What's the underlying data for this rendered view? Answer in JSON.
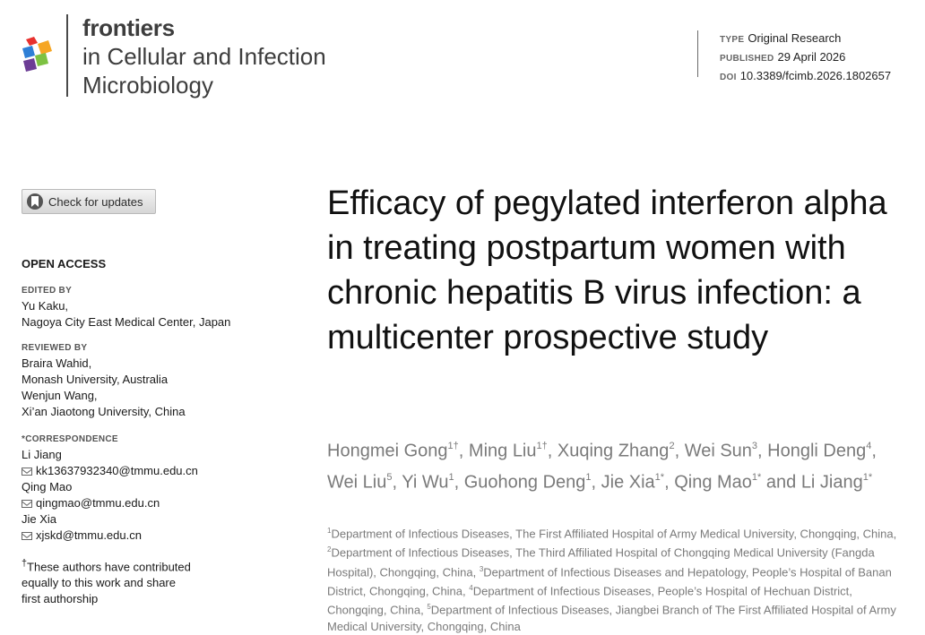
{
  "header": {
    "brand": "frontiers",
    "journal": "in Cellular and Infection Microbiology",
    "type_label": "TYPE",
    "type": "Original Research",
    "published_label": "PUBLISHED",
    "published": "29 April 2026",
    "doi_label": "DOI",
    "doi": "10.3389/fcimb.2026.1802657",
    "logo_colors": [
      "#e8312e",
      "#f6a623",
      "#2e7fd6",
      "#7dc242",
      "#6c3d95"
    ]
  },
  "sidebar": {
    "check_updates": "Check for updates",
    "open_access": "OPEN ACCESS",
    "edited_by": {
      "label": "EDITED BY",
      "lines": [
        "Yu Kaku,",
        "Nagoya City East Medical Center, Japan"
      ]
    },
    "reviewed_by": {
      "label": "REVIEWED BY",
      "lines": [
        "Braira Wahid,",
        "Monash University, Australia",
        "Wenjun Wang,",
        "Xi’an Jiaotong University, China"
      ]
    },
    "correspondence": {
      "label": "*CORRESPONDENCE",
      "contacts": [
        {
          "name": "Li Jiang",
          "email": "kk13637932340@tmmu.edu.cn"
        },
        {
          "name": "Qing Mao",
          "email": "qingmao@tmmu.edu.cn"
        },
        {
          "name": "Jie Xia",
          "email": "xjskd@tmmu.edu.cn"
        }
      ]
    },
    "contrib_note": {
      "mark": "†",
      "lines": [
        "These authors have contributed",
        "equally to this work and share",
        "first authorship"
      ]
    }
  },
  "article": {
    "title": "Efficacy of pegylated interferon alpha in treating postpartum women with chronic hepatitis B virus infection: a multicenter prospective study",
    "authors": [
      {
        "name": "Hongmei Gong",
        "sup": "1†",
        "sep": ", "
      },
      {
        "name": "Ming Liu",
        "sup": "1†",
        "sep": ", "
      },
      {
        "name": "Xuqing Zhang",
        "sup": "2",
        "sep": ", "
      },
      {
        "name": "Wei Sun",
        "sup": "3",
        "sep": ", "
      },
      {
        "name": "Hongli Deng",
        "sup": "4",
        "sep": ", "
      },
      {
        "name": "Wei Liu",
        "sup": "5",
        "sep": ", "
      },
      {
        "name": "Yi Wu",
        "sup": "1",
        "sep": ", "
      },
      {
        "name": "Guohong Deng",
        "sup": "1",
        "sep": ", "
      },
      {
        "name": "Jie Xia",
        "sup": "1*",
        "sep": ", "
      },
      {
        "name": "Qing Mao",
        "sup": "1*",
        "sep": " and "
      },
      {
        "name": "Li Jiang",
        "sup": "1*",
        "sep": ""
      }
    ],
    "affiliations": [
      {
        "num": "1",
        "text": "Department of Infectious Diseases, The First Affiliated Hospital of Army Medical University, Chongqing, China, "
      },
      {
        "num": "2",
        "text": "Department of Infectious Diseases, The Third Affiliated Hospital of Chongqing Medical University (Fangda Hospital), Chongqing, China, "
      },
      {
        "num": "3",
        "text": "Department of Infectious Diseases and Hepatology, People’s Hospital of Banan District, Chongqing, China, "
      },
      {
        "num": "4",
        "text": "Department of Infectious Diseases, People’s Hospital of Hechuan District, Chongqing, China, "
      },
      {
        "num": "5",
        "text": "Department of Infectious Diseases, Jiangbei Branch of The First Affiliated Hospital of Army Medical University, Chongqing, China"
      }
    ]
  }
}
